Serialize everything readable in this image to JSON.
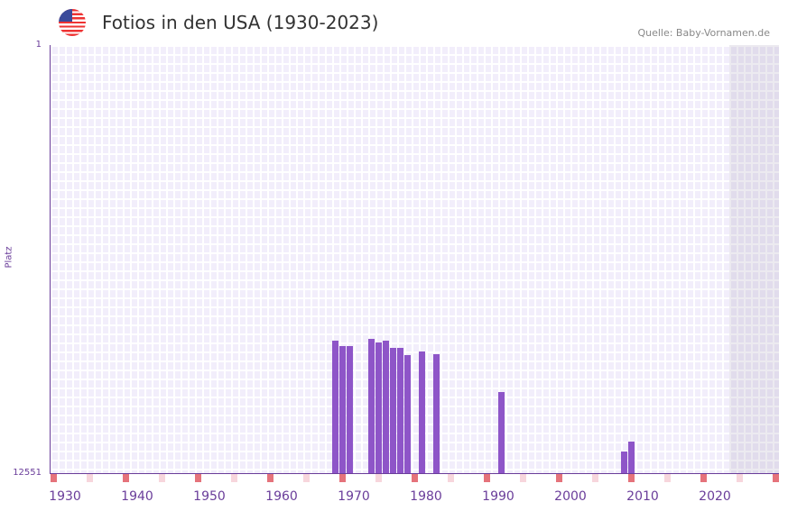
{
  "header": {
    "title": "Fotios in den USA (1930-2023)",
    "source": "Quelle: Baby-Vornamen.de",
    "flag_icon": "usa-flag-icon"
  },
  "chart_data": {
    "type": "bar",
    "title": "Fotios in den USA (1930-2023)",
    "xlabel": "",
    "ylabel": "Platz",
    "xlim": [
      1930,
      2030
    ],
    "ylim": [
      1,
      12551
    ],
    "y_inverted": true,
    "y_ticks": [
      "1",
      "12551"
    ],
    "x_ticks": [
      "1930",
      "1940",
      "1950",
      "1960",
      "1970",
      "1980",
      "1990",
      "2000",
      "2010",
      "2020"
    ],
    "future_from": 2024,
    "x": [
      1969,
      1970,
      1971,
      1974,
      1975,
      1976,
      1977,
      1978,
      1979,
      1981,
      1983,
      1992,
      2009,
      2010
    ],
    "values": [
      8667,
      8826,
      8826,
      8614,
      8720,
      8667,
      8878,
      8878,
      9090,
      8984,
      9063,
      10173,
      11917,
      11626
    ],
    "colors": {
      "bar": "#8e55c8",
      "axis": "#6a3d9a",
      "decade_marker": "#e5737b",
      "half_decade_marker": "#f7d6dc"
    }
  }
}
